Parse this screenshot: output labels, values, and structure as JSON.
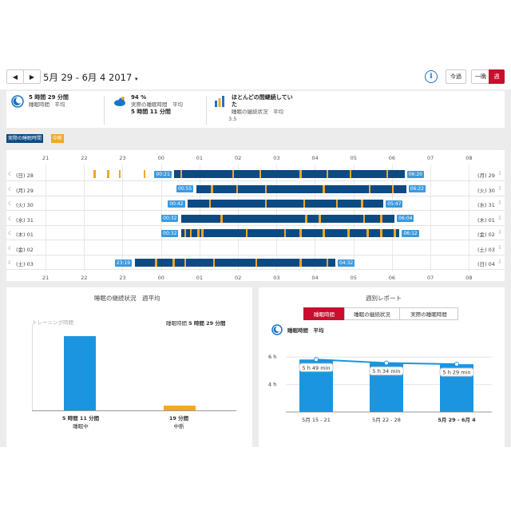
{
  "header": {
    "prev": "◀",
    "next": "▶",
    "date_range": "5月 29 - 6月 4 2017",
    "caret": "▾",
    "info": "i",
    "today": "今過",
    "one_night": "一晩",
    "week": "週"
  },
  "stats": [
    {
      "value": "5 時間 29 分間",
      "label": "睡眠時間　平均",
      "icon": "moon-clock-icon"
    },
    {
      "value": "94 %",
      "label": "実際の睡眠時間　平均",
      "value2": "5 時間 11 分間",
      "icon": "cloud-moon-icon"
    },
    {
      "value": "ほとんどの間継続してい",
      "value_line2": "た",
      "label": "睡眠の継続状況　平均",
      "value2": "3.5",
      "icon": "continuity-bars-icon"
    }
  ],
  "legend": {
    "actual": "実際の睡眠時間",
    "interrupt": "中断"
  },
  "hours": [
    "21",
    "22",
    "23",
    "00",
    "01",
    "02",
    "03",
    "04",
    "05",
    "06",
    "07",
    "08"
  ],
  "rows": [
    {
      "left": "(日) 28",
      "right": "(月) 29",
      "start": "00:21",
      "end": "06:20",
      "s": 3.35,
      "e": 9.33,
      "gaps": [
        1.25,
        1.6,
        1.9,
        2.55,
        3.5,
        4.85,
        5.55,
        6.6,
        7.3,
        7.9,
        8.85
      ]
    },
    {
      "left": "(月) 29",
      "right": "(火) 30",
      "start": "00:55",
      "end": "06:22",
      "s": 3.92,
      "e": 9.37,
      "gaps": [
        4.3,
        4.95,
        5.7,
        7.2,
        8.4,
        9.0
      ]
    },
    {
      "left": "(火) 30",
      "right": "(水) 31",
      "start": "00:42",
      "end": "05:47",
      "s": 3.7,
      "e": 8.78,
      "gaps": [
        4.25,
        5.7,
        6.7,
        7.55,
        8.2
      ]
    },
    {
      "left": "(水) 31",
      "right": "(木) 01",
      "start": "00:32",
      "end": "06:04",
      "s": 3.53,
      "e": 9.07,
      "gaps": [
        4.55,
        6.75,
        7.1,
        8.25,
        8.7
      ]
    },
    {
      "left": "(木) 01",
      "right": "(金) 02",
      "start": "00:32",
      "end": "06:12",
      "s": 3.53,
      "e": 9.2,
      "gaps": [
        3.6,
        3.75,
        3.95,
        4.05,
        5.2,
        6.2,
        6.6,
        7.2,
        7.85,
        8.35,
        8.7,
        9.05
      ]
    },
    {
      "left": "(金) 02",
      "right": "(土) 03",
      "start": "",
      "end": "",
      "s": null,
      "e": null,
      "gaps": []
    },
    {
      "left": "(土) 03",
      "right": "(日) 04",
      "start": "23:19",
      "end": "04:32",
      "s": 2.32,
      "e": 7.53,
      "gaps": [
        2.85,
        3.3,
        3.6,
        4.35,
        5.45,
        6.6,
        7.3
      ]
    }
  ],
  "weekly_avg": {
    "title": "睡眠の継続状況　週平均",
    "training_label": "トレーニング時間",
    "sleep_time_label": "睡眠時間",
    "sleep_time_value": "5 時間 29 分間",
    "bars": [
      {
        "value_text": "5 時間 11 分間",
        "label": "睡眠中",
        "minutes": 311,
        "color": "#1b95e0"
      },
      {
        "value_text": "19 分間",
        "label": "中断",
        "minutes": 19,
        "color": "#f5a623"
      }
    ]
  },
  "weekly_report": {
    "title": "週別レポート",
    "tabs": [
      "睡眠時間",
      "睡眠の継続状況",
      "実際の睡眠時間"
    ],
    "subtitle": "睡眠時間　平均",
    "yticks": [
      "6 h",
      "4 h"
    ]
  },
  "chart_data": {
    "type": "bar",
    "categories": [
      "5月 15 - 21",
      "5月 22 - 28",
      "5月 29 - 6月 4"
    ],
    "values": [
      5.82,
      5.57,
      5.48
    ],
    "data_labels": [
      "5 h 49 min",
      "5 h 34 min",
      "5 h 29 min"
    ],
    "ylim": [
      2,
      7
    ],
    "series_line": true,
    "colors": {
      "bar": "#1b95e0",
      "line": "#1b95e0"
    }
  },
  "colors": {
    "accent": "#c8102e",
    "sleep": "#0c4a84",
    "interrupt": "#f5a623",
    "tag": "#3a9ae0"
  }
}
